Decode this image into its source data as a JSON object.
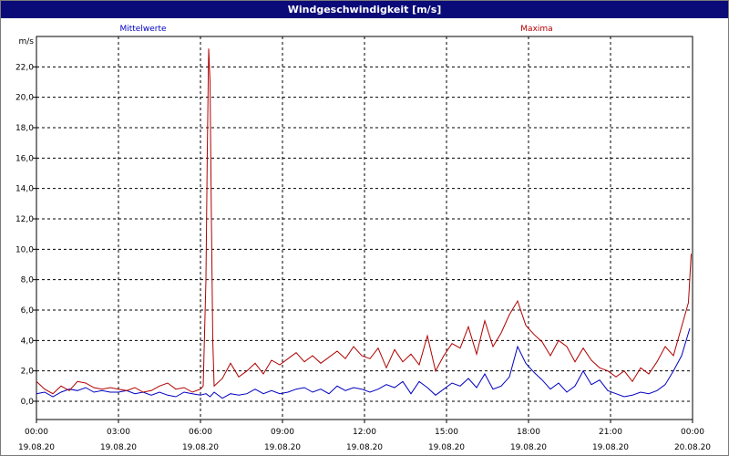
{
  "window": {
    "title": "Windgeschwindigkeit [m/s]"
  },
  "colors": {
    "mean": "#0000c0",
    "max": "#b00000",
    "titlebar": "#0a0a78",
    "grid": "#000000"
  },
  "chart_data": {
    "type": "line",
    "title": "Windgeschwindigkeit [m/s]",
    "ylabel": "m/s",
    "xlabel": "",
    "ylim": [
      -1.2,
      24.0
    ],
    "xlim_hours": [
      0,
      24
    ],
    "grid": true,
    "legend": "top",
    "y_ticks": [
      "0,0",
      "2,0",
      "4,0",
      "6,0",
      "8,0",
      "10,0",
      "12,0",
      "14,0",
      "16,0",
      "18,0",
      "20,0",
      "22,0"
    ],
    "y_tick_values": [
      0,
      2,
      4,
      6,
      8,
      10,
      12,
      14,
      16,
      18,
      20,
      22
    ],
    "x_ticks": [
      {
        "time": "00:00",
        "date": "19.08.20"
      },
      {
        "time": "03:00",
        "date": "19.08.20"
      },
      {
        "time": "06:00",
        "date": "19.08.20"
      },
      {
        "time": "09:00",
        "date": "19.08.20"
      },
      {
        "time": "12:00",
        "date": "19.08.20"
      },
      {
        "time": "15:00",
        "date": "19.08.20"
      },
      {
        "time": "18:00",
        "date": "19.08.20"
      },
      {
        "time": "21:00",
        "date": "19.08.20"
      },
      {
        "time": "00:00",
        "date": "20.08.20"
      }
    ],
    "x_tick_hours": [
      0,
      3,
      6,
      9,
      12,
      15,
      18,
      21,
      24
    ],
    "series": [
      {
        "name": "Mittelwerte",
        "points": [
          [
            0,
            0.5
          ],
          [
            0.3,
            0.6
          ],
          [
            0.6,
            0.3
          ],
          [
            0.9,
            0.6
          ],
          [
            1.2,
            0.8
          ],
          [
            1.5,
            0.7
          ],
          [
            1.8,
            0.9
          ],
          [
            2.1,
            0.6
          ],
          [
            2.4,
            0.7
          ],
          [
            2.7,
            0.6
          ],
          [
            3.0,
            0.6
          ],
          [
            3.3,
            0.7
          ],
          [
            3.6,
            0.5
          ],
          [
            3.9,
            0.6
          ],
          [
            4.2,
            0.4
          ],
          [
            4.5,
            0.6
          ],
          [
            4.8,
            0.4
          ],
          [
            5.1,
            0.3
          ],
          [
            5.4,
            0.6
          ],
          [
            5.7,
            0.5
          ],
          [
            6.0,
            0.4
          ],
          [
            6.2,
            0.5
          ],
          [
            6.35,
            0.3
          ],
          [
            6.5,
            0.6
          ],
          [
            6.8,
            0.2
          ],
          [
            7.1,
            0.5
          ],
          [
            7.4,
            0.4
          ],
          [
            7.7,
            0.5
          ],
          [
            8.0,
            0.8
          ],
          [
            8.3,
            0.5
          ],
          [
            8.6,
            0.7
          ],
          [
            8.9,
            0.5
          ],
          [
            9.2,
            0.6
          ],
          [
            9.5,
            0.8
          ],
          [
            9.8,
            0.9
          ],
          [
            10.1,
            0.6
          ],
          [
            10.4,
            0.8
          ],
          [
            10.7,
            0.5
          ],
          [
            11.0,
            1.0
          ],
          [
            11.3,
            0.7
          ],
          [
            11.6,
            0.9
          ],
          [
            11.9,
            0.8
          ],
          [
            12.2,
            0.6
          ],
          [
            12.5,
            0.8
          ],
          [
            12.8,
            1.1
          ],
          [
            13.1,
            0.9
          ],
          [
            13.4,
            1.3
          ],
          [
            13.7,
            0.5
          ],
          [
            14.0,
            1.3
          ],
          [
            14.3,
            0.9
          ],
          [
            14.6,
            0.4
          ],
          [
            14.9,
            0.8
          ],
          [
            15.2,
            1.2
          ],
          [
            15.5,
            1.0
          ],
          [
            15.8,
            1.5
          ],
          [
            16.1,
            0.9
          ],
          [
            16.4,
            1.8
          ],
          [
            16.7,
            0.8
          ],
          [
            17.0,
            1.0
          ],
          [
            17.3,
            1.6
          ],
          [
            17.6,
            3.6
          ],
          [
            17.9,
            2.5
          ],
          [
            18.2,
            1.9
          ],
          [
            18.5,
            1.4
          ],
          [
            18.8,
            0.8
          ],
          [
            19.1,
            1.2
          ],
          [
            19.4,
            0.6
          ],
          [
            19.7,
            1.0
          ],
          [
            20.0,
            2.0
          ],
          [
            20.3,
            1.1
          ],
          [
            20.6,
            1.4
          ],
          [
            20.9,
            0.7
          ],
          [
            21.2,
            0.5
          ],
          [
            21.5,
            0.3
          ],
          [
            21.8,
            0.4
          ],
          [
            22.1,
            0.6
          ],
          [
            22.4,
            0.5
          ],
          [
            22.7,
            0.7
          ],
          [
            23.0,
            1.1
          ],
          [
            23.3,
            2.0
          ],
          [
            23.6,
            3.0
          ],
          [
            23.9,
            4.8
          ]
        ]
      },
      {
        "name": "Maxima",
        "points": [
          [
            0,
            1.3
          ],
          [
            0.3,
            0.8
          ],
          [
            0.6,
            0.5
          ],
          [
            0.9,
            1.0
          ],
          [
            1.2,
            0.7
          ],
          [
            1.5,
            1.3
          ],
          [
            1.8,
            1.2
          ],
          [
            2.1,
            0.9
          ],
          [
            2.4,
            0.8
          ],
          [
            2.7,
            0.9
          ],
          [
            3.0,
            0.8
          ],
          [
            3.3,
            0.7
          ],
          [
            3.6,
            0.9
          ],
          [
            3.9,
            0.6
          ],
          [
            4.2,
            0.7
          ],
          [
            4.5,
            1.0
          ],
          [
            4.8,
            1.2
          ],
          [
            5.1,
            0.8
          ],
          [
            5.4,
            0.9
          ],
          [
            5.7,
            0.6
          ],
          [
            6.0,
            0.8
          ],
          [
            6.1,
            1.0
          ],
          [
            6.2,
            8.0
          ],
          [
            6.25,
            16.5
          ],
          [
            6.3,
            23.2
          ],
          [
            6.35,
            21.0
          ],
          [
            6.4,
            12.0
          ],
          [
            6.45,
            4.0
          ],
          [
            6.5,
            1.0
          ],
          [
            6.8,
            1.5
          ],
          [
            7.1,
            2.5
          ],
          [
            7.4,
            1.6
          ],
          [
            7.7,
            2.0
          ],
          [
            8.0,
            2.5
          ],
          [
            8.3,
            1.8
          ],
          [
            8.6,
            2.7
          ],
          [
            8.9,
            2.4
          ],
          [
            9.2,
            2.8
          ],
          [
            9.5,
            3.2
          ],
          [
            9.8,
            2.6
          ],
          [
            10.1,
            3.0
          ],
          [
            10.4,
            2.5
          ],
          [
            10.7,
            2.9
          ],
          [
            11.0,
            3.3
          ],
          [
            11.3,
            2.8
          ],
          [
            11.6,
            3.6
          ],
          [
            11.9,
            3.0
          ],
          [
            12.2,
            2.8
          ],
          [
            12.5,
            3.5
          ],
          [
            12.8,
            2.2
          ],
          [
            13.1,
            3.4
          ],
          [
            13.4,
            2.6
          ],
          [
            13.7,
            3.1
          ],
          [
            14.0,
            2.4
          ],
          [
            14.3,
            4.3
          ],
          [
            14.6,
            2.0
          ],
          [
            14.9,
            3.0
          ],
          [
            15.2,
            3.8
          ],
          [
            15.5,
            3.5
          ],
          [
            15.8,
            4.9
          ],
          [
            16.1,
            3.1
          ],
          [
            16.4,
            5.3
          ],
          [
            16.7,
            3.6
          ],
          [
            17.0,
            4.5
          ],
          [
            17.3,
            5.7
          ],
          [
            17.6,
            6.6
          ],
          [
            17.9,
            5.0
          ],
          [
            18.2,
            4.4
          ],
          [
            18.5,
            3.9
          ],
          [
            18.8,
            3.0
          ],
          [
            19.1,
            4.0
          ],
          [
            19.4,
            3.6
          ],
          [
            19.7,
            2.6
          ],
          [
            20.0,
            3.5
          ],
          [
            20.3,
            2.7
          ],
          [
            20.6,
            2.2
          ],
          [
            20.9,
            2.0
          ],
          [
            21.2,
            1.6
          ],
          [
            21.5,
            2.0
          ],
          [
            21.8,
            1.3
          ],
          [
            22.1,
            2.2
          ],
          [
            22.4,
            1.8
          ],
          [
            22.7,
            2.6
          ],
          [
            23.0,
            3.6
          ],
          [
            23.3,
            3.0
          ],
          [
            23.6,
            4.9
          ],
          [
            23.85,
            6.5
          ],
          [
            23.95,
            9.7
          ]
        ]
      }
    ]
  }
}
